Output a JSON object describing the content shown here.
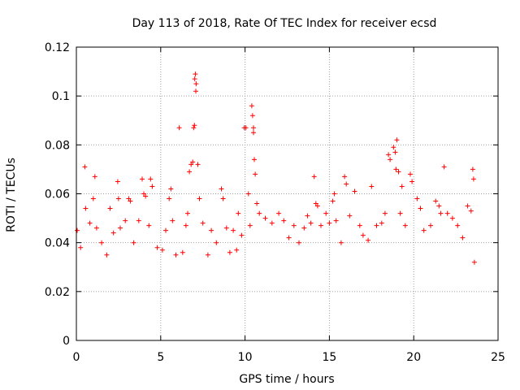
{
  "chart_data": {
    "type": "scatter",
    "title": "Day 113 of 2018, Rate Of TEC Index for receiver ecsd",
    "xlabel": "GPS time / hours",
    "ylabel": "ROTI / TECUs",
    "xlim": [
      0,
      25
    ],
    "ylim": [
      0,
      0.12
    ],
    "xticks": [
      0,
      5,
      10,
      15,
      20,
      25
    ],
    "xtick_labels": [
      "0",
      "5",
      "10",
      "15",
      "20",
      "25"
    ],
    "yticks": [
      0,
      0.02,
      0.04,
      0.06,
      0.08,
      0.1,
      0.12
    ],
    "ytick_labels": [
      "0",
      "0.02",
      "0.04",
      "0.06",
      "0.08",
      "0.1",
      "0.12"
    ],
    "grid": true,
    "marker": "+",
    "color": "#ff0000",
    "series": [
      {
        "name": "ROTI",
        "points": [
          [
            0.05,
            0.045
          ],
          [
            0.25,
            0.038
          ],
          [
            0.5,
            0.071
          ],
          [
            0.55,
            0.054
          ],
          [
            0.8,
            0.048
          ],
          [
            1.0,
            0.058
          ],
          [
            1.1,
            0.067
          ],
          [
            1.2,
            0.046
          ],
          [
            1.5,
            0.04
          ],
          [
            1.8,
            0.035
          ],
          [
            2.0,
            0.054
          ],
          [
            2.2,
            0.044
          ],
          [
            2.45,
            0.065
          ],
          [
            2.5,
            0.058
          ],
          [
            2.6,
            0.046
          ],
          [
            2.9,
            0.049
          ],
          [
            3.1,
            0.058
          ],
          [
            3.2,
            0.057
          ],
          [
            3.4,
            0.04
          ],
          [
            3.7,
            0.049
          ],
          [
            3.9,
            0.066
          ],
          [
            4.0,
            0.06
          ],
          [
            4.1,
            0.059
          ],
          [
            4.3,
            0.047
          ],
          [
            4.4,
            0.066
          ],
          [
            4.5,
            0.063
          ],
          [
            4.8,
            0.038
          ],
          [
            5.1,
            0.037
          ],
          [
            5.3,
            0.045
          ],
          [
            5.5,
            0.058
          ],
          [
            5.6,
            0.062
          ],
          [
            5.7,
            0.049
          ],
          [
            5.9,
            0.035
          ],
          [
            6.1,
            0.087
          ],
          [
            6.3,
            0.036
          ],
          [
            6.5,
            0.047
          ],
          [
            6.6,
            0.052
          ],
          [
            6.7,
            0.069
          ],
          [
            6.8,
            0.072
          ],
          [
            6.9,
            0.073
          ],
          [
            6.95,
            0.087
          ],
          [
            7.0,
            0.088
          ],
          [
            7.02,
            0.107
          ],
          [
            7.05,
            0.109
          ],
          [
            7.08,
            0.102
          ],
          [
            7.1,
            0.105
          ],
          [
            7.2,
            0.072
          ],
          [
            7.3,
            0.058
          ],
          [
            7.5,
            0.048
          ],
          [
            7.8,
            0.035
          ],
          [
            8.0,
            0.045
          ],
          [
            8.3,
            0.04
          ],
          [
            8.6,
            0.062
          ],
          [
            8.7,
            0.058
          ],
          [
            8.9,
            0.046
          ],
          [
            9.1,
            0.036
          ],
          [
            9.3,
            0.045
          ],
          [
            9.5,
            0.037
          ],
          [
            9.6,
            0.052
          ],
          [
            9.8,
            0.043
          ],
          [
            9.95,
            0.087
          ],
          [
            10.05,
            0.087
          ],
          [
            10.2,
            0.06
          ],
          [
            10.3,
            0.047
          ],
          [
            10.4,
            0.096
          ],
          [
            10.45,
            0.092
          ],
          [
            10.5,
            0.087
          ],
          [
            10.5,
            0.085
          ],
          [
            10.55,
            0.074
          ],
          [
            10.6,
            0.068
          ],
          [
            10.7,
            0.056
          ],
          [
            10.85,
            0.052
          ],
          [
            11.2,
            0.05
          ],
          [
            11.6,
            0.048
          ],
          [
            12.0,
            0.052
          ],
          [
            12.3,
            0.049
          ],
          [
            12.6,
            0.042
          ],
          [
            12.9,
            0.047
          ],
          [
            13.2,
            0.04
          ],
          [
            13.5,
            0.046
          ],
          [
            13.7,
            0.051
          ],
          [
            13.9,
            0.048
          ],
          [
            14.1,
            0.067
          ],
          [
            14.2,
            0.056
          ],
          [
            14.3,
            0.055
          ],
          [
            14.5,
            0.047
          ],
          [
            14.8,
            0.052
          ],
          [
            15.0,
            0.048
          ],
          [
            15.2,
            0.057
          ],
          [
            15.3,
            0.06
          ],
          [
            15.4,
            0.049
          ],
          [
            15.7,
            0.04
          ],
          [
            15.9,
            0.067
          ],
          [
            16.0,
            0.064
          ],
          [
            16.2,
            0.051
          ],
          [
            16.5,
            0.061
          ],
          [
            16.8,
            0.047
          ],
          [
            17.0,
            0.043
          ],
          [
            17.3,
            0.041
          ],
          [
            17.5,
            0.063
          ],
          [
            17.8,
            0.047
          ],
          [
            18.1,
            0.048
          ],
          [
            18.3,
            0.052
          ],
          [
            18.5,
            0.076
          ],
          [
            18.6,
            0.074
          ],
          [
            18.8,
            0.079
          ],
          [
            18.9,
            0.077
          ],
          [
            18.95,
            0.07
          ],
          [
            19.0,
            0.082
          ],
          [
            19.1,
            0.069
          ],
          [
            19.2,
            0.052
          ],
          [
            19.3,
            0.063
          ],
          [
            19.5,
            0.047
          ],
          [
            19.8,
            0.068
          ],
          [
            19.9,
            0.065
          ],
          [
            20.2,
            0.058
          ],
          [
            20.4,
            0.054
          ],
          [
            20.6,
            0.045
          ],
          [
            21.0,
            0.047
          ],
          [
            21.3,
            0.057
          ],
          [
            21.5,
            0.055
          ],
          [
            21.6,
            0.052
          ],
          [
            21.8,
            0.071
          ],
          [
            22.0,
            0.052
          ],
          [
            22.3,
            0.05
          ],
          [
            22.6,
            0.047
          ],
          [
            22.9,
            0.042
          ],
          [
            23.2,
            0.055
          ],
          [
            23.4,
            0.053
          ],
          [
            23.5,
            0.07
          ],
          [
            23.55,
            0.066
          ],
          [
            23.6,
            0.032
          ]
        ]
      }
    ]
  }
}
